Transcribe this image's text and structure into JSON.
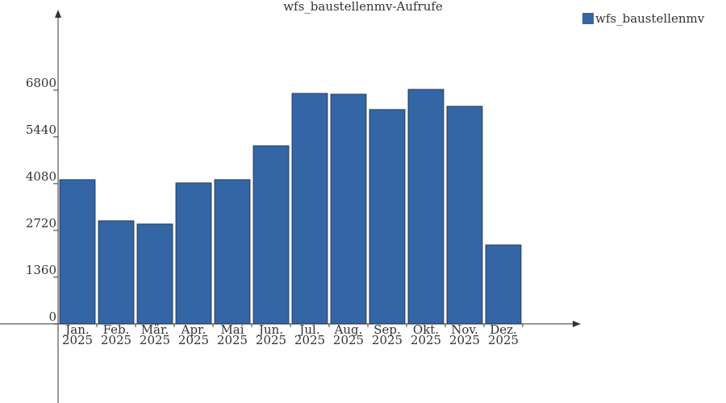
{
  "chart_data": {
    "type": "bar",
    "title": "wfs_baustellenmv-Aufrufe",
    "categories": [
      "Jan.\n2025",
      "Feb.\n2025",
      "Mär.\n2025",
      "Apr.\n2025",
      "Mai\n2025",
      "Jun.\n2025",
      "Jul.\n2025",
      "Aug.\n2025",
      "Sep.\n2025",
      "Okt.\n2025",
      "Nov.\n2025",
      "Dez.\n2025"
    ],
    "series": [
      {
        "name": "wfs_baustellenmv",
        "color": "#3465a4",
        "values": [
          4197,
          3001,
          2907,
          4103,
          4197,
          5182,
          6706,
          6683,
          6237,
          6823,
          6331,
          2298
        ]
      }
    ],
    "ylim": [
      -2300,
      9000
    ],
    "yticks": [
      0,
      1360,
      2720,
      4080,
      5440,
      6800
    ],
    "grid": false,
    "legend": "top-right"
  }
}
